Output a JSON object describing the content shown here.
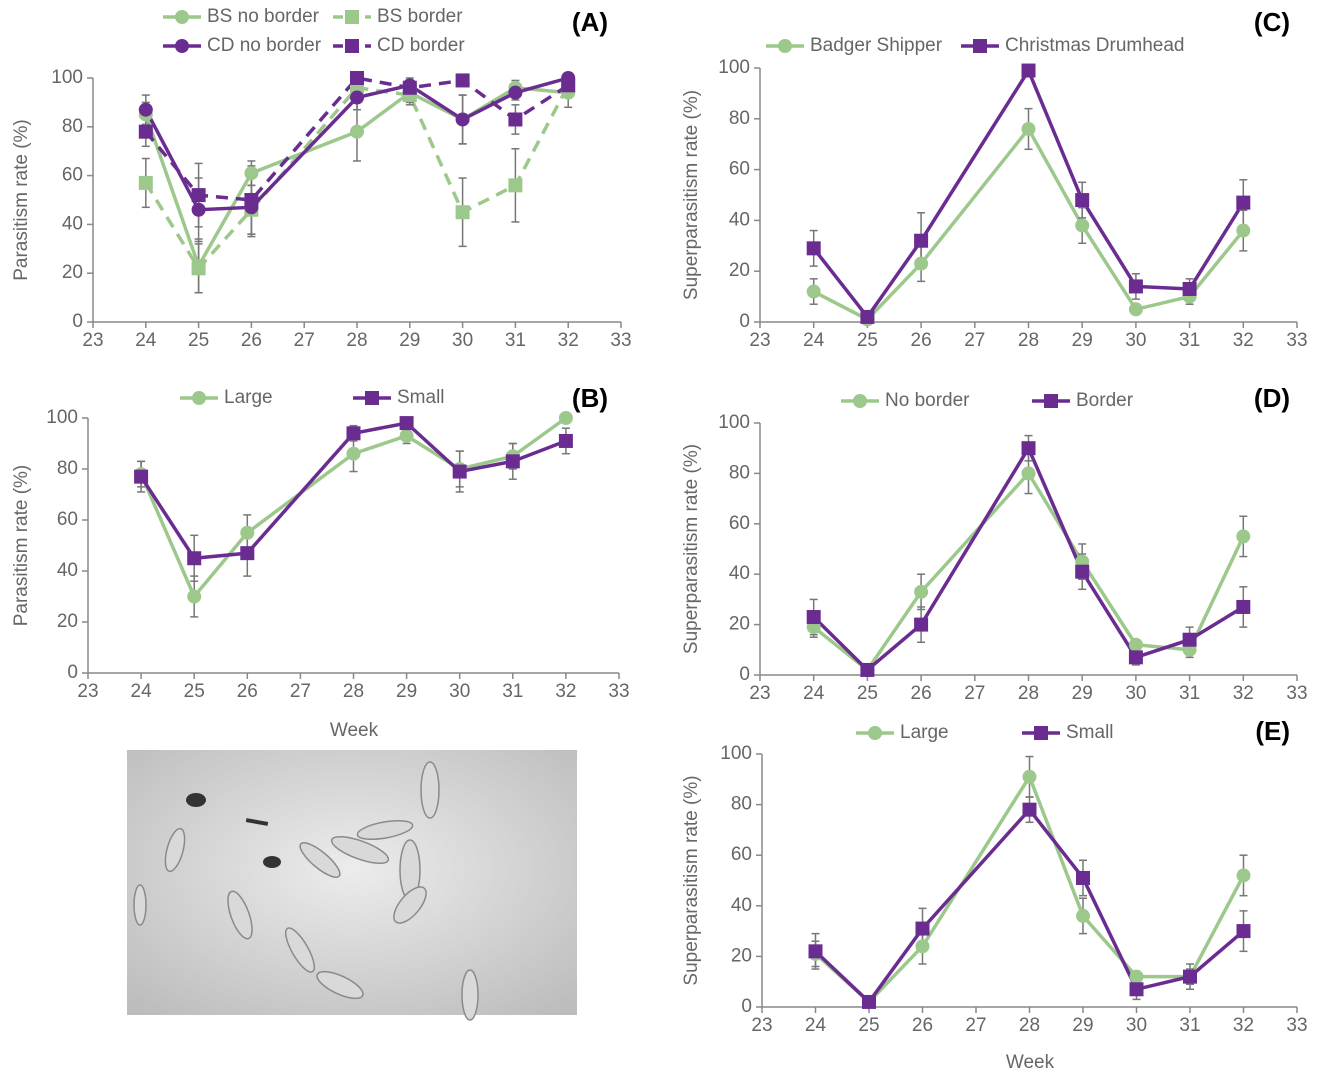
{
  "chart_data": [
    {
      "type": "line",
      "panel_label": "(A)",
      "ylabel": "Parasitism rate (%)",
      "x": [
        24,
        25,
        26,
        28,
        29,
        30,
        31,
        32
      ],
      "xlim": [
        23,
        33
      ],
      "xticks": [
        23,
        24,
        25,
        26,
        27,
        28,
        29,
        30,
        31,
        32,
        33
      ],
      "ylim": [
        0,
        100
      ],
      "yticks": [
        0,
        20,
        40,
        60,
        80,
        100
      ],
      "series": [
        {
          "name": "BS no border",
          "color": "#9cc98b",
          "marker": "circle",
          "dashed": false,
          "values": [
            85,
            23,
            61,
            78,
            94,
            83,
            96,
            94
          ],
          "errors": [
            5,
            11,
            5,
            12,
            4,
            10,
            3,
            6
          ]
        },
        {
          "name": "BS border",
          "color": "#9cc98b",
          "marker": "square",
          "dashed": true,
          "values": [
            57,
            22,
            46,
            96,
            93,
            45,
            56,
            97
          ],
          "errors": [
            10,
            10,
            10,
            3,
            4,
            14,
            15,
            3
          ]
        },
        {
          "name": "CD no border",
          "color": "#6a2c91",
          "marker": "circle",
          "dashed": false,
          "values": [
            87,
            46,
            47,
            92,
            97,
            83,
            94,
            100
          ],
          "errors": [
            6,
            13,
            12,
            5,
            3,
            10,
            3,
            0
          ]
        },
        {
          "name": "CD border",
          "color": "#6a2c91",
          "marker": "square",
          "dashed": true,
          "values": [
            78,
            52,
            50,
            100,
            96,
            99,
            83,
            97
          ],
          "errors": [
            6,
            13,
            14,
            0,
            3,
            0,
            6,
            3
          ]
        }
      ]
    },
    {
      "type": "line",
      "panel_label": "(B)",
      "ylabel": "Parasitism rate (%)",
      "xlabel": "Week",
      "x": [
        24,
        25,
        26,
        28,
        29,
        30,
        31,
        32
      ],
      "xlim": [
        23,
        33
      ],
      "xticks": [
        23,
        24,
        25,
        26,
        27,
        28,
        29,
        30,
        31,
        32,
        33
      ],
      "ylim": [
        0,
        100
      ],
      "yticks": [
        0,
        20,
        40,
        60,
        80,
        100
      ],
      "series": [
        {
          "name": "Large",
          "color": "#9cc98b",
          "marker": "circle",
          "dashed": false,
          "values": [
            78,
            30,
            55,
            86,
            93,
            80,
            85,
            100
          ],
          "errors": [
            5,
            8,
            7,
            7,
            3,
            7,
            5,
            0
          ]
        },
        {
          "name": "Small",
          "color": "#6a2c91",
          "marker": "square",
          "dashed": false,
          "values": [
            77,
            45,
            47,
            94,
            98,
            79,
            83,
            91
          ],
          "errors": [
            6,
            9,
            9,
            3,
            2,
            8,
            7,
            5
          ]
        }
      ]
    },
    {
      "type": "line",
      "panel_label": "(C)",
      "ylabel": "Superparasitism rate (%)",
      "x": [
        24,
        25,
        26,
        28,
        29,
        30,
        31,
        32
      ],
      "xlim": [
        23,
        33
      ],
      "xticks": [
        23,
        24,
        25,
        26,
        27,
        28,
        29,
        30,
        31,
        32,
        33
      ],
      "ylim": [
        0,
        100
      ],
      "yticks": [
        0,
        20,
        40,
        60,
        80,
        100
      ],
      "series": [
        {
          "name": "Badger Shipper",
          "color": "#9cc98b",
          "marker": "circle",
          "dashed": false,
          "values": [
            12,
            1,
            23,
            76,
            38,
            5,
            10,
            36
          ],
          "errors": [
            5,
            1,
            7,
            8,
            7,
            2,
            3,
            8
          ]
        },
        {
          "name": "Christmas Drumhead",
          "color": "#6a2c91",
          "marker": "square",
          "dashed": false,
          "values": [
            29,
            2,
            32,
            99,
            48,
            14,
            13,
            47
          ],
          "errors": [
            7,
            1,
            11,
            0,
            7,
            5,
            4,
            9
          ]
        }
      ]
    },
    {
      "type": "line",
      "panel_label": "(D)",
      "ylabel": "Superparasitism rate (%)",
      "x": [
        24,
        25,
        26,
        28,
        29,
        30,
        31,
        32
      ],
      "xlim": [
        23,
        33
      ],
      "xticks": [
        23,
        24,
        25,
        26,
        27,
        28,
        29,
        30,
        31,
        32,
        33
      ],
      "ylim": [
        0,
        100
      ],
      "yticks": [
        0,
        20,
        40,
        60,
        80,
        100
      ],
      "series": [
        {
          "name": "No border",
          "color": "#9cc98b",
          "marker": "circle",
          "dashed": false,
          "values": [
            19,
            2,
            33,
            80,
            45,
            12,
            10,
            55
          ],
          "errors": [
            4,
            1,
            7,
            8,
            7,
            2,
            3,
            8
          ]
        },
        {
          "name": "Border",
          "color": "#6a2c91",
          "marker": "square",
          "dashed": false,
          "values": [
            23,
            2,
            20,
            90,
            41,
            7,
            14,
            27
          ],
          "errors": [
            7,
            1,
            7,
            5,
            7,
            3,
            5,
            8
          ]
        }
      ]
    },
    {
      "type": "line",
      "panel_label": "(E)",
      "ylabel": "Superparasitism rate (%)",
      "xlabel": "Week",
      "x": [
        24,
        25,
        26,
        28,
        29,
        30,
        31,
        32
      ],
      "xlim": [
        23,
        33
      ],
      "xticks": [
        23,
        24,
        25,
        26,
        27,
        28,
        29,
        30,
        31,
        32,
        33
      ],
      "ylim": [
        0,
        100
      ],
      "yticks": [
        0,
        20,
        40,
        60,
        80,
        100
      ],
      "series": [
        {
          "name": "Large",
          "color": "#9cc98b",
          "marker": "circle",
          "dashed": false,
          "values": [
            21,
            2,
            24,
            91,
            36,
            12,
            12,
            52
          ],
          "errors": [
            5,
            1,
            7,
            8,
            7,
            2,
            3,
            8
          ]
        },
        {
          "name": "Small",
          "color": "#6a2c91",
          "marker": "square",
          "dashed": false,
          "values": [
            22,
            2,
            31,
            78,
            51,
            7,
            12,
            30
          ],
          "errors": [
            7,
            1,
            8,
            5,
            7,
            4,
            5,
            8
          ]
        }
      ]
    }
  ]
}
